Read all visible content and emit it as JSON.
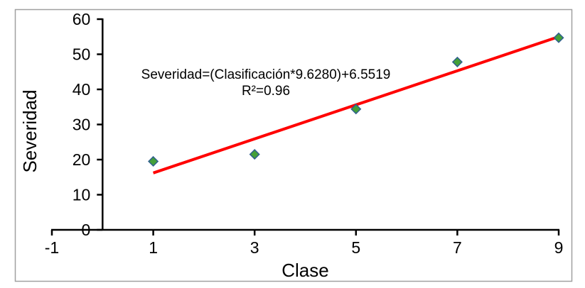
{
  "chart_data": {
    "type": "scatter",
    "title": "",
    "xlabel": "Clase",
    "ylabel": "Severidad",
    "xlim": [
      -1,
      9
    ],
    "ylim": [
      0,
      60
    ],
    "x_ticks": [
      -1,
      1,
      3,
      5,
      7,
      9
    ],
    "y_ticks": [
      0,
      10,
      20,
      30,
      40,
      50,
      60
    ],
    "grid": false,
    "legend": "none",
    "points": [
      {
        "x": 1,
        "y": 19.5
      },
      {
        "x": 3,
        "y": 21.5
      },
      {
        "x": 5,
        "y": 34.4
      },
      {
        "x": 7,
        "y": 47.8
      },
      {
        "x": 9,
        "y": 54.7
      }
    ],
    "trendline": {
      "x1": 1,
      "y1": 16.2,
      "x2": 9,
      "y2": 55.0
    },
    "annotation": {
      "equation": "Severidad=(Clasificación*9.6280)+6.5519",
      "r_squared": "R²=0.96"
    },
    "colors": {
      "marker_fill": "#44a038",
      "marker_stroke": "#2f5f8f",
      "trendline": "#ff0000",
      "axis": "#000000",
      "text": "#000000",
      "frame_border": "#a0a0a0",
      "background": "#ffffff"
    }
  }
}
